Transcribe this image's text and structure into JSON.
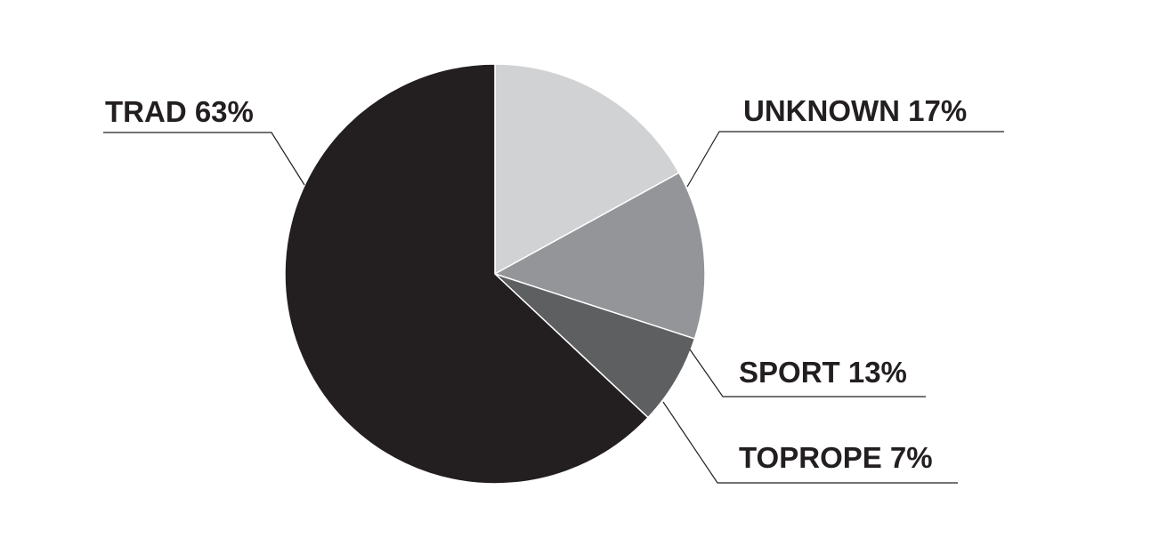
{
  "chart_data": {
    "type": "pie",
    "title": "",
    "start": "top",
    "direction": "clockwise",
    "slices": [
      {
        "name": "UNKNOWN",
        "value": 17,
        "label": "UNKNOWN 17%",
        "color": "#d1d2d4"
      },
      {
        "name": "SPORT",
        "value": 13,
        "label": "SPORT 13%",
        "color": "#949598"
      },
      {
        "name": "TOPROPE",
        "value": 7,
        "label": "TOPROPE 7%",
        "color": "#5e5f61"
      },
      {
        "name": "TRAD",
        "value": 63,
        "label": "TRAD 63%",
        "color": "#231f20"
      }
    ],
    "separator_color": "#ffffff",
    "legend": "none"
  }
}
